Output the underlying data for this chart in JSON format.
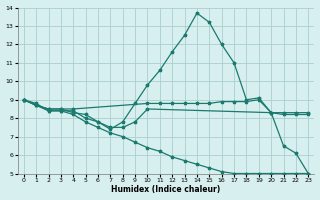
{
  "xlabel": "Humidex (Indice chaleur)",
  "xlim": [
    -0.5,
    23.5
  ],
  "ylim": [
    5,
    14
  ],
  "yticks": [
    5,
    6,
    7,
    8,
    9,
    10,
    11,
    12,
    13,
    14
  ],
  "xticks": [
    0,
    1,
    2,
    3,
    4,
    5,
    6,
    7,
    8,
    9,
    10,
    11,
    12,
    13,
    14,
    15,
    16,
    17,
    18,
    19,
    20,
    21,
    22,
    23
  ],
  "bg_color": "#d8efef",
  "grid_color": "#aacece",
  "line_color": "#1a7a6e",
  "lines": [
    {
      "x": [
        0,
        1,
        2,
        3,
        4,
        5,
        6,
        7,
        8,
        9,
        10,
        11,
        12,
        13,
        14,
        15,
        16,
        17,
        18,
        19,
        20,
        21,
        22,
        23
      ],
      "y": [
        9.0,
        8.8,
        8.4,
        8.4,
        8.4,
        8.0,
        7.8,
        7.4,
        7.8,
        8.8,
        9.8,
        10.6,
        11.6,
        12.5,
        13.7,
        13.2,
        12.0,
        11.0,
        9.0,
        9.1,
        8.3,
        6.5,
        6.1,
        5.0
      ]
    },
    {
      "x": [
        0,
        1,
        2,
        3,
        4,
        10,
        11,
        12,
        13,
        14,
        15,
        16,
        17,
        18,
        19,
        20,
        21,
        22,
        23
      ],
      "y": [
        9.0,
        8.7,
        8.5,
        8.5,
        8.5,
        8.8,
        8.8,
        8.8,
        8.8,
        8.8,
        8.8,
        8.9,
        8.9,
        8.9,
        9.0,
        8.3,
        8.3,
        8.3,
        8.3
      ]
    },
    {
      "x": [
        0,
        1,
        2,
        3,
        4,
        5,
        6,
        7,
        8,
        9,
        10,
        20,
        21,
        22,
        23
      ],
      "y": [
        9.0,
        8.7,
        8.5,
        8.5,
        8.3,
        8.2,
        7.8,
        7.5,
        7.5,
        7.8,
        8.5,
        8.3,
        8.2,
        8.2,
        8.2
      ]
    },
    {
      "x": [
        0,
        1,
        2,
        3,
        4,
        5,
        6,
        7,
        8,
        9,
        10,
        11,
        12,
        13,
        14,
        15,
        16,
        17,
        18,
        19,
        20,
        21,
        22,
        23
      ],
      "y": [
        9.0,
        8.7,
        8.4,
        8.4,
        8.2,
        7.8,
        7.5,
        7.2,
        7.0,
        6.7,
        6.4,
        6.2,
        5.9,
        5.7,
        5.5,
        5.3,
        5.1,
        5.0,
        5.0,
        5.0,
        5.0,
        5.0,
        5.0,
        5.0
      ]
    }
  ]
}
